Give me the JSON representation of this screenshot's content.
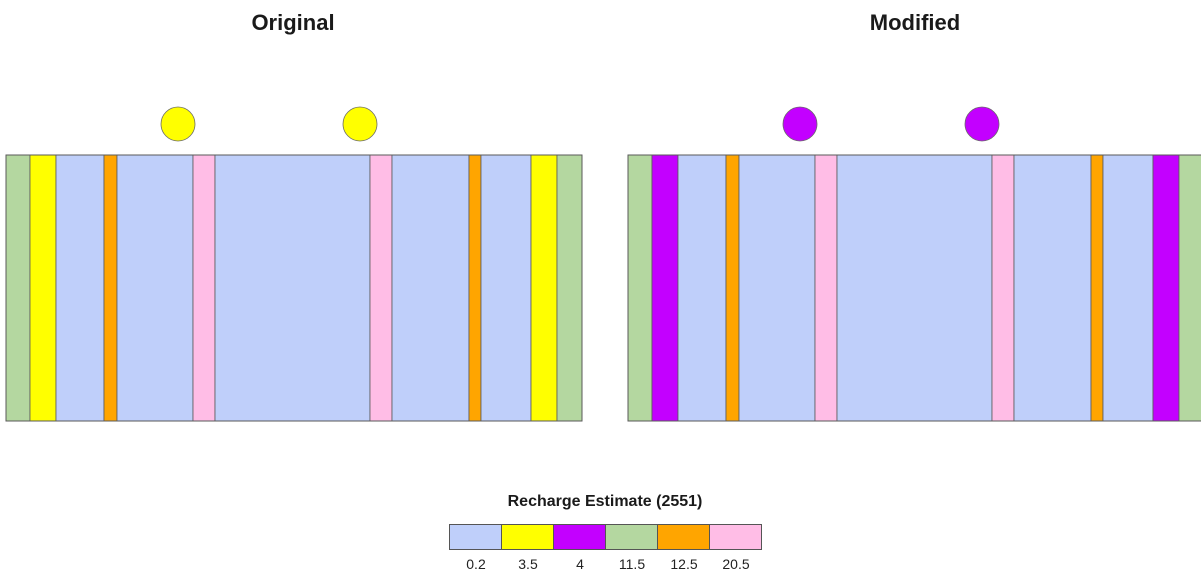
{
  "titles": {
    "left": "Original",
    "right": "Modified"
  },
  "colors": {
    "0.2": "#bfcffa",
    "3.5": "#ffff00",
    "4": "#c300ff",
    "11.5": "#b4d7a0",
    "12.5": "#ffa500",
    "20.5": "#ffbde6"
  },
  "panels": {
    "original": {
      "circle_color": "#ffff00",
      "strips": [
        "11.5",
        "3.5",
        "0.2",
        "12.5",
        "0.2",
        "20.5",
        "0.2",
        "20.5",
        "0.2",
        "12.5",
        "0.2",
        "3.5",
        "11.5"
      ]
    },
    "modified": {
      "circle_color": "#c300ff",
      "strips": [
        "11.5",
        "4",
        "0.2",
        "12.5",
        "0.2",
        "20.5",
        "0.2",
        "20.5",
        "0.2",
        "12.5",
        "0.2",
        "4",
        "11.5"
      ]
    }
  },
  "legend": {
    "title": "Recharge Estimate (2551)",
    "items": [
      "0.2",
      "3.5",
      "4",
      "11.5",
      "12.5",
      "20.5"
    ]
  }
}
